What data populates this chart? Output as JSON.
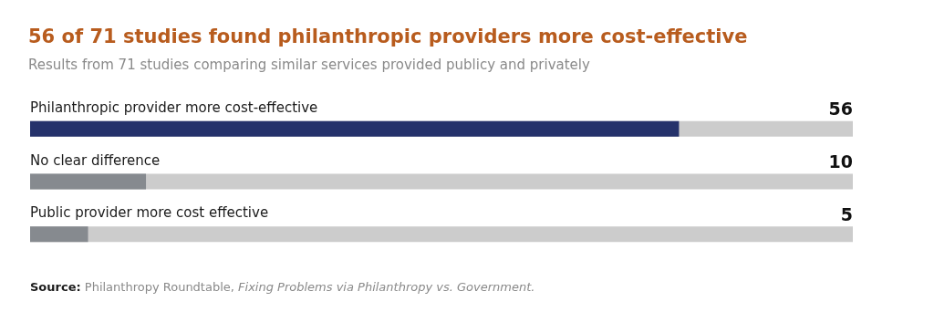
{
  "chart_data": {
    "type": "bar",
    "orientation": "horizontal",
    "title": "56 of 71 studies found philanthropic providers more cost-effective",
    "subtitle": "Results from 71 studies comparing similar services provided publicy and privately",
    "categories": [
      "Philanthropic provider more cost-effective",
      "No clear difference",
      "Public provider more cost effective"
    ],
    "values": [
      56,
      10,
      5
    ],
    "colors": [
      "#25326b",
      "#868a8f",
      "#868a8f"
    ],
    "xlim": [
      0,
      71
    ],
    "tick_labels": "y",
    "data_labels": true,
    "annotations": [
      "Source: Philanthropy Roundtable, Fixing Problems via Philanthropy vs. Government."
    ]
  }
}
